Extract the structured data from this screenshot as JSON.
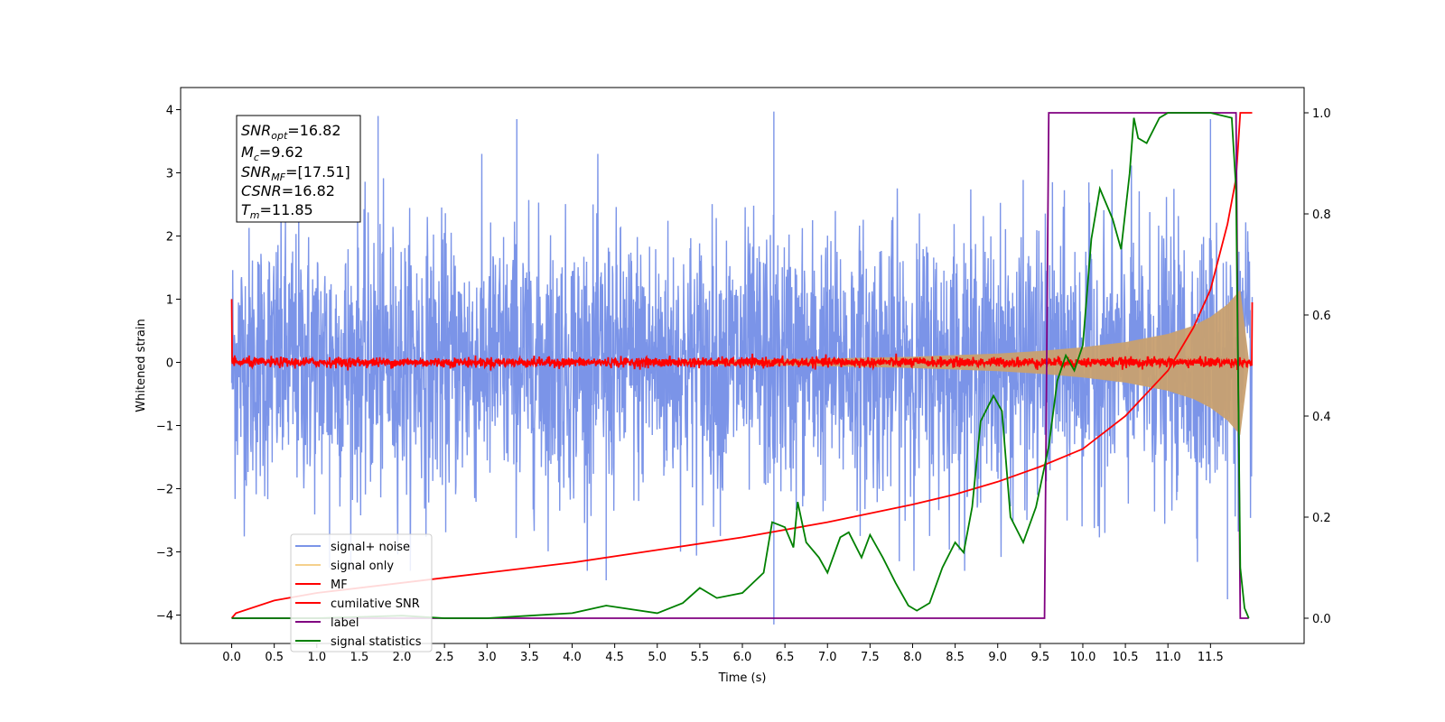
{
  "chart_data": {
    "type": "line",
    "xlabel": "Time (s)",
    "ylabel": "Whitened strain",
    "xlim": [
      -0.6,
      12.6
    ],
    "ylim": [
      -4.45,
      4.35
    ],
    "y2lim": [
      -0.05,
      1.05
    ],
    "x_ticks": [
      "0.0",
      "0.5",
      "1.0",
      "1.5",
      "2.0",
      "2.5",
      "3.0",
      "3.5",
      "4.0",
      "4.5",
      "5.0",
      "5.5",
      "6.0",
      "6.5",
      "7.0",
      "7.5",
      "8.0",
      "8.5",
      "9.0",
      "9.5",
      "10.0",
      "10.5",
      "11.0",
      "11.5"
    ],
    "y_ticks": [
      "−4",
      "−3",
      "−2",
      "−1",
      "0",
      "1",
      "2",
      "3",
      "4"
    ],
    "y2_ticks": [
      "0.0",
      "0.2",
      "0.4",
      "0.6",
      "0.8",
      "1.0"
    ],
    "info_box": {
      "snr_opt": {
        "symbol": "SNR",
        "sub": "opt",
        "value": "=16.82"
      },
      "mc": {
        "symbol": "M",
        "sub": "c",
        "value": "=9.62"
      },
      "snr_mf": {
        "symbol": "SNR",
        "sub": "MF",
        "value": "=[17.51]"
      },
      "csnr": {
        "symbol": "CSNR",
        "value": "=16.82"
      },
      "tm": {
        "symbol": "T",
        "sub": "m",
        "value": "=11.85"
      }
    },
    "legend": {
      "placement": "lower-left",
      "entries": [
        {
          "label": "signal+ noise",
          "color": "#7b94e8"
        },
        {
          "label": "signal only",
          "color": "#f5d08c"
        },
        {
          "label": "MF",
          "color": "#ff0000"
        },
        {
          "label": "cumilative SNR",
          "color": "#ff0000"
        },
        {
          "label": "label",
          "color": "#800080"
        },
        {
          "label": "signal statistics",
          "color": "#008000"
        }
      ]
    },
    "series": [
      {
        "name": "signal+ noise",
        "axis": "left",
        "color": "#7b94e8",
        "description_free": true,
        "x_range": [
          0,
          11.99
        ],
        "baseline": 0.0,
        "noise_envelope_y": [
          -3.3,
          3.3
        ],
        "spikes": [
          [
            1.72,
            3.9
          ],
          [
            3.35,
            3.85
          ],
          [
            6.37,
            3.97
          ],
          [
            11.5,
            3.85
          ],
          [
            6.37,
            -4.15
          ],
          [
            4.4,
            -3.45
          ],
          [
            1.15,
            -3.25
          ],
          [
            11.7,
            -3.75
          ]
        ]
      },
      {
        "name": "signal only",
        "axis": "left",
        "color": "#c8a070",
        "envelope": {
          "x": [
            5.0,
            7.0,
            8.0,
            9.0,
            9.5,
            10.0,
            10.5,
            11.0,
            11.3,
            11.5,
            11.7,
            11.85,
            11.95
          ],
          "amp": [
            0.03,
            0.06,
            0.09,
            0.14,
            0.18,
            0.24,
            0.32,
            0.45,
            0.58,
            0.72,
            0.92,
            1.15,
            0.05
          ]
        }
      },
      {
        "name": "MF",
        "axis": "left",
        "color": "#ff0000",
        "x_range": [
          0,
          11.99
        ],
        "baseline": 0.0,
        "noise_amplitude": 0.07,
        "start_value": 1.0,
        "end_value": 0.95
      },
      {
        "name": "cumilative SNR",
        "axis": "right",
        "color": "#ff0000",
        "x": [
          0.0,
          0.05,
          0.5,
          1.0,
          2.0,
          3.0,
          4.0,
          5.0,
          6.0,
          7.0,
          8.0,
          8.5,
          9.0,
          9.5,
          10.0,
          10.5,
          11.0,
          11.3,
          11.5,
          11.7,
          11.8,
          11.85,
          11.99
        ],
        "values": [
          0.0,
          0.01,
          0.035,
          0.05,
          0.07,
          0.09,
          0.11,
          0.135,
          0.16,
          0.19,
          0.225,
          0.245,
          0.27,
          0.3,
          0.335,
          0.4,
          0.49,
          0.575,
          0.65,
          0.78,
          0.87,
          1.0,
          1.0
        ]
      },
      {
        "name": "label",
        "axis": "right",
        "color": "#800080",
        "x": [
          0.0,
          9.55,
          9.6,
          11.8,
          11.85,
          11.95
        ],
        "values": [
          0.0,
          0.0,
          1.0,
          1.0,
          0.0,
          0.0
        ]
      },
      {
        "name": "signal statistics",
        "axis": "right",
        "color": "#008000",
        "x": [
          0.0,
          1.0,
          2.0,
          2.5,
          3.0,
          3.5,
          4.0,
          4.4,
          5.0,
          5.3,
          5.5,
          5.7,
          6.0,
          6.25,
          6.35,
          6.5,
          6.6,
          6.65,
          6.75,
          6.9,
          7.0,
          7.15,
          7.25,
          7.4,
          7.5,
          7.65,
          7.8,
          7.95,
          8.05,
          8.2,
          8.35,
          8.5,
          8.6,
          8.7,
          8.8,
          8.95,
          9.05,
          9.15,
          9.3,
          9.45,
          9.6,
          9.7,
          9.8,
          9.9,
          10.0,
          10.1,
          10.2,
          10.35,
          10.45,
          10.55,
          10.6,
          10.65,
          10.75,
          10.9,
          11.0,
          11.2,
          11.5,
          11.75,
          11.8,
          11.85,
          11.9,
          11.95
        ],
        "values": [
          0.0,
          0.0,
          0.005,
          0.0,
          0.0,
          0.005,
          0.01,
          0.025,
          0.01,
          0.03,
          0.06,
          0.04,
          0.05,
          0.09,
          0.19,
          0.18,
          0.14,
          0.23,
          0.15,
          0.12,
          0.09,
          0.16,
          0.17,
          0.12,
          0.165,
          0.12,
          0.07,
          0.025,
          0.015,
          0.03,
          0.1,
          0.15,
          0.13,
          0.22,
          0.39,
          0.44,
          0.41,
          0.2,
          0.15,
          0.22,
          0.34,
          0.47,
          0.52,
          0.49,
          0.54,
          0.75,
          0.85,
          0.79,
          0.73,
          0.88,
          0.99,
          0.95,
          0.94,
          0.99,
          1.0,
          1.0,
          1.0,
          0.99,
          0.85,
          0.1,
          0.02,
          0.0
        ]
      }
    ]
  }
}
